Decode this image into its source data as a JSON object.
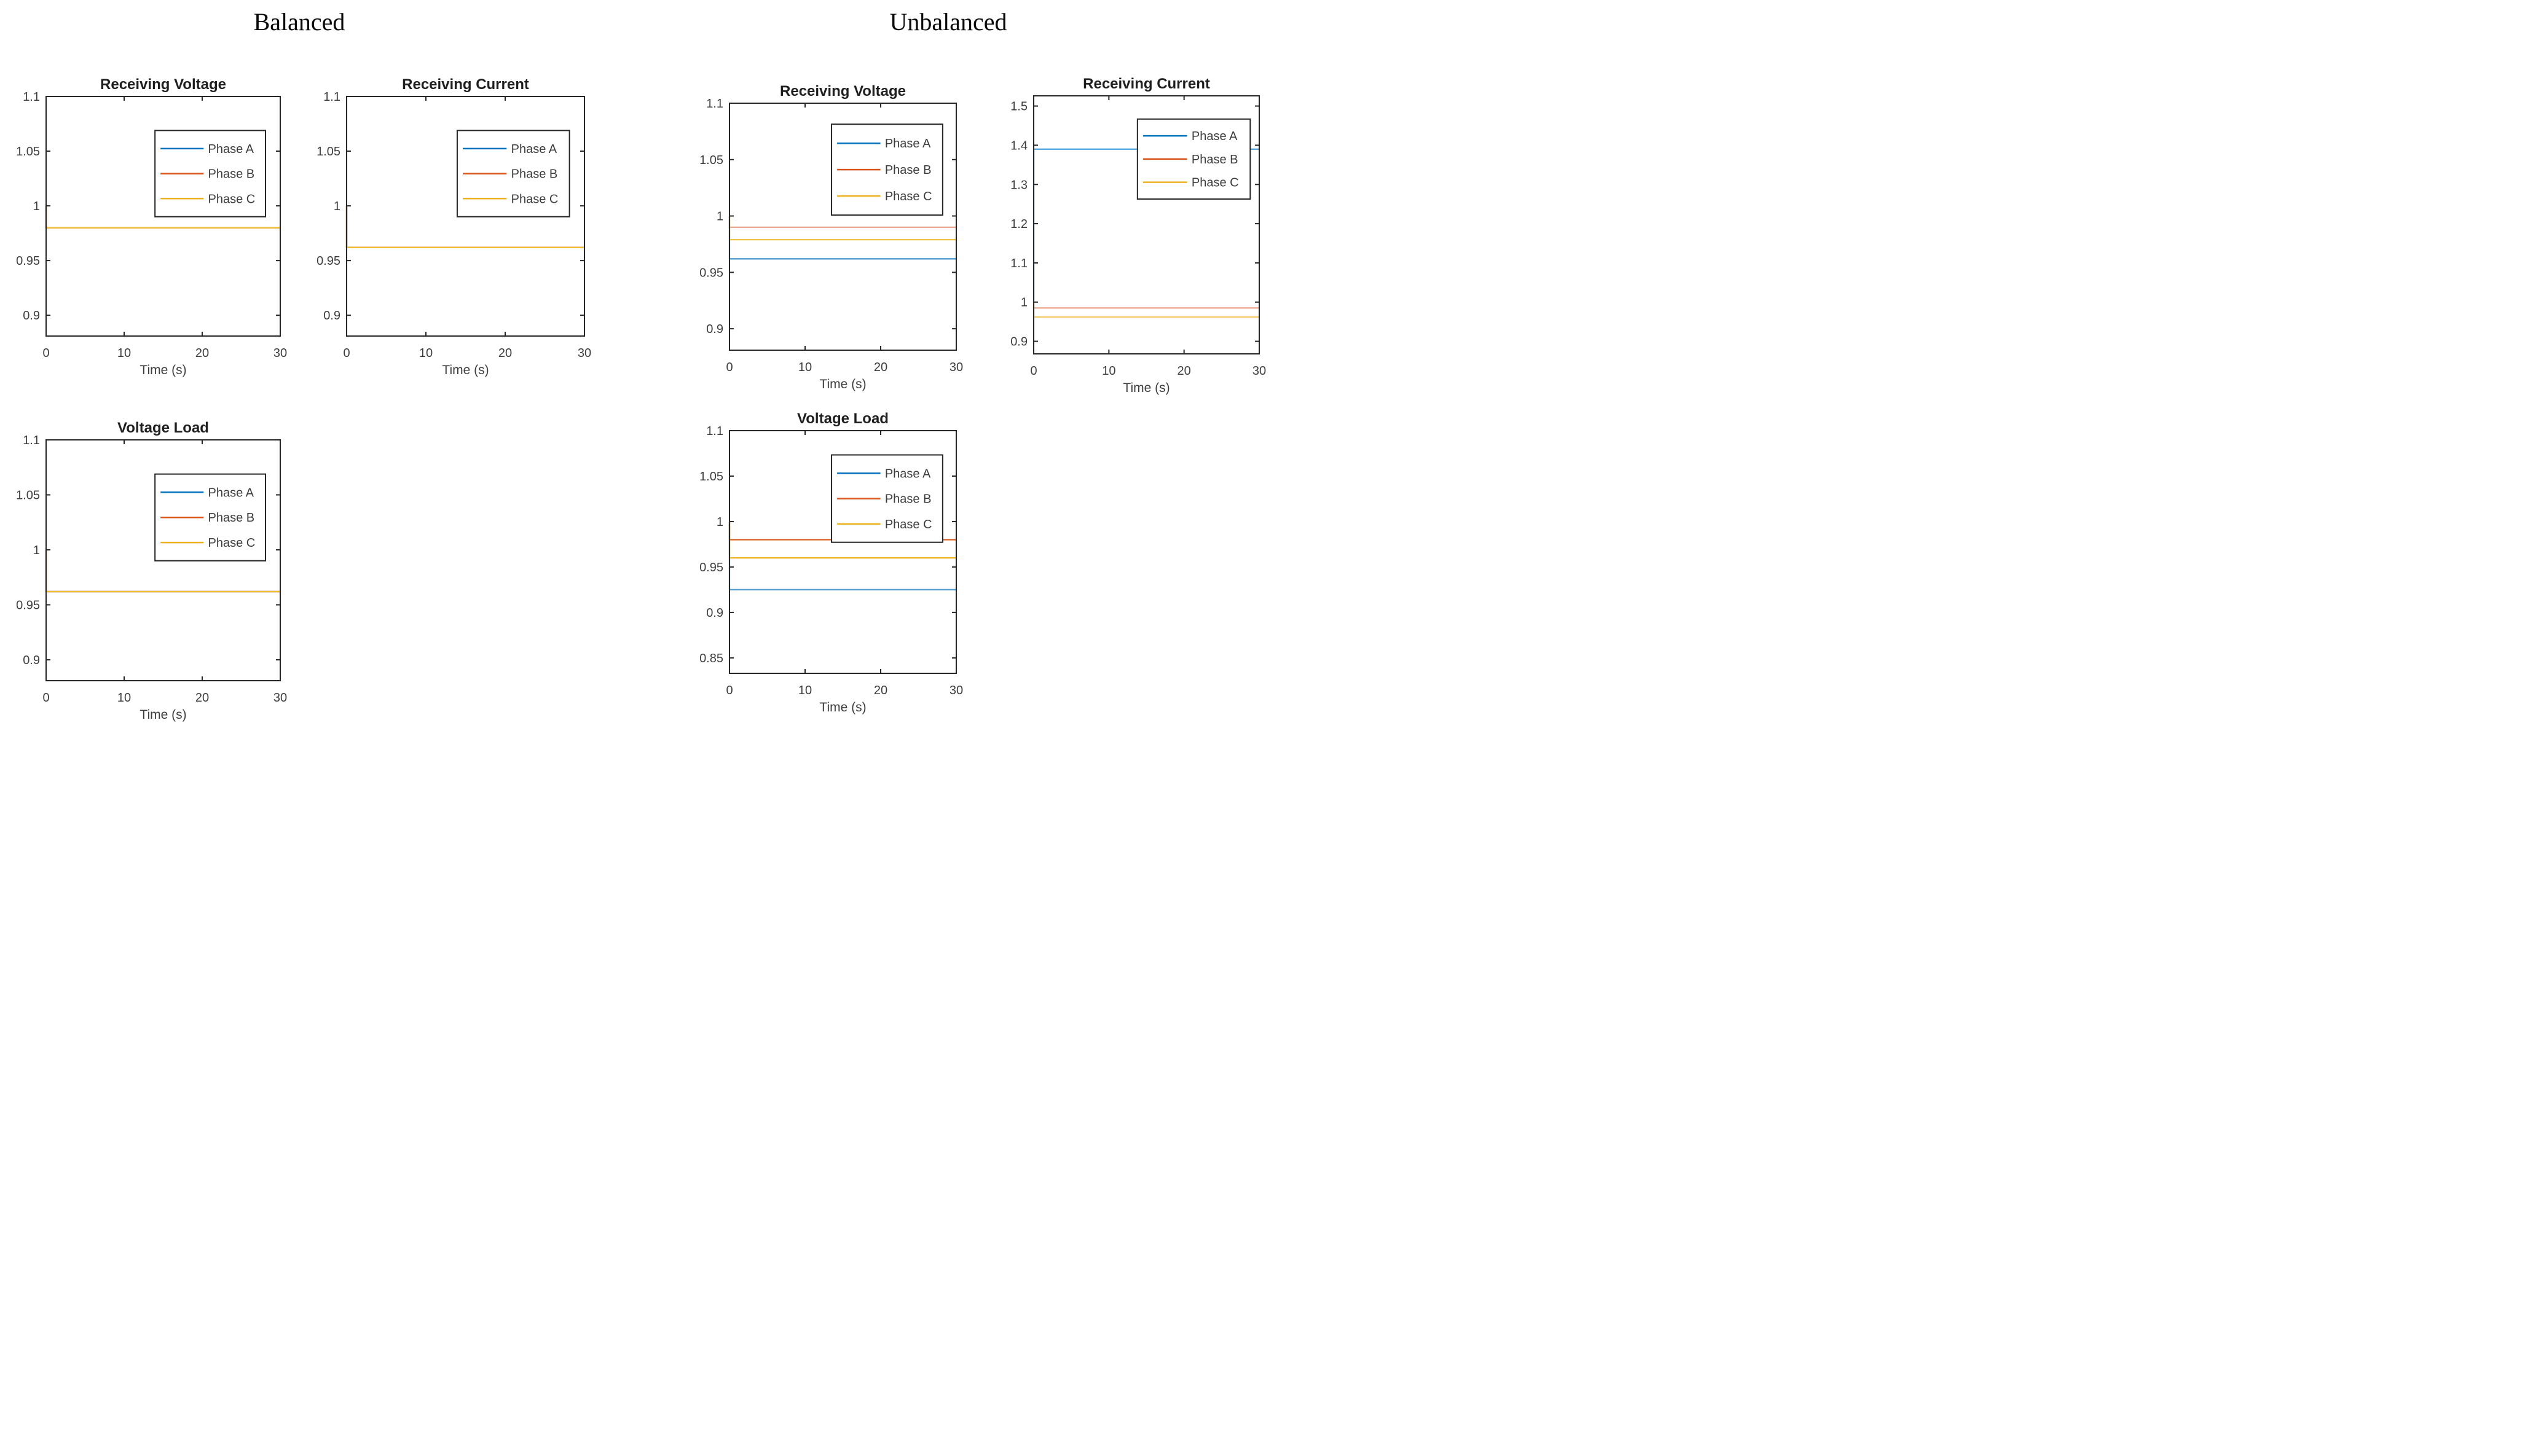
{
  "figure": {
    "background": "#ffffff",
    "axis_color": "#262626",
    "label_color": "#3d3d3d",
    "title_color": "#1f1f1f"
  },
  "groups": [
    {
      "title": "Balanced"
    },
    {
      "title": "Unbalanced"
    }
  ],
  "legend_labels": [
    "Phase A",
    "Phase B",
    "Phase C"
  ],
  "legend_colors": [
    "#0072BD",
    "#D95319",
    "#EDB120"
  ],
  "chart_data": [
    {
      "id": "balanced-receiving-voltage",
      "group": "Balanced",
      "type": "line",
      "title": "Receiving Voltage",
      "xlabel": "Time (s)",
      "xlim": [
        0,
        30
      ],
      "xticks": [
        "0",
        "10",
        "20",
        "30"
      ],
      "ylim": [
        0.881,
        1.1
      ],
      "yticks": [
        "1.1",
        "1.05",
        "1",
        "0.95",
        "0.9"
      ],
      "grid": false,
      "legend": {
        "position": "upper-right",
        "box": {
          "x": 0.465,
          "y": 0.142,
          "w": 0.472,
          "h": 0.36
        },
        "entries": [
          {
            "label": "Phase A",
            "color": "#0072BD"
          },
          {
            "label": "Phase B",
            "color": "#D95319"
          },
          {
            "label": "Phase C",
            "color": "#EDB120"
          }
        ]
      },
      "series": [
        {
          "name": "Phase A",
          "color": "#0072BD",
          "x": [
            0,
            0,
            30
          ],
          "y": [
            1.0,
            0.98,
            0.98
          ]
        },
        {
          "name": "Phase B",
          "color": "#D95319",
          "x": [
            0,
            0,
            30
          ],
          "y": [
            1.0,
            0.98,
            0.98
          ]
        },
        {
          "name": "Phase C",
          "color": "#F2BC33",
          "x": [
            0,
            0,
            30
          ],
          "y": [
            1.0,
            0.98,
            0.98
          ]
        }
      ]
    },
    {
      "id": "balanced-receiving-current",
      "group": "Balanced",
      "type": "line",
      "title": "Receiving Current",
      "xlabel": "Time (s)",
      "xlim": [
        0,
        30
      ],
      "xticks": [
        "0",
        "10",
        "20",
        "30"
      ],
      "ylim": [
        0.881,
        1.1
      ],
      "yticks": [
        "1.1",
        "1.05",
        "1",
        "0.95",
        "0.9"
      ],
      "grid": false,
      "legend": {
        "position": "upper-right",
        "box": {
          "x": 0.465,
          "y": 0.142,
          "w": 0.472,
          "h": 0.36
        },
        "entries": [
          {
            "label": "Phase A",
            "color": "#0072BD"
          },
          {
            "label": "Phase B",
            "color": "#D95319"
          },
          {
            "label": "Phase C",
            "color": "#EDB120"
          }
        ]
      },
      "series": [
        {
          "name": "Phase A",
          "color": "#0072BD",
          "x": [
            0,
            0,
            30
          ],
          "y": [
            1.0,
            0.962,
            0.962
          ]
        },
        {
          "name": "Phase B",
          "color": "#D95319",
          "x": [
            0,
            0,
            30
          ],
          "y": [
            1.0,
            0.962,
            0.962
          ]
        },
        {
          "name": "Phase C",
          "color": "#F2BC33",
          "x": [
            0,
            0,
            30
          ],
          "y": [
            1.0,
            0.962,
            0.962
          ]
        }
      ]
    },
    {
      "id": "balanced-voltage-load",
      "group": "Balanced",
      "type": "line",
      "title": "Voltage Load",
      "xlabel": "Time (s)",
      "xlim": [
        0,
        30
      ],
      "xticks": [
        "0",
        "10",
        "20",
        "30"
      ],
      "ylim": [
        0.881,
        1.1
      ],
      "yticks": [
        "1.1",
        "1.05",
        "1",
        "0.95",
        "0.9"
      ],
      "grid": false,
      "legend": {
        "position": "upper-right",
        "box": {
          "x": 0.465,
          "y": 0.142,
          "w": 0.472,
          "h": 0.36
        },
        "entries": [
          {
            "label": "Phase A",
            "color": "#0072BD"
          },
          {
            "label": "Phase B",
            "color": "#D95319"
          },
          {
            "label": "Phase C",
            "color": "#EDB120"
          }
        ]
      },
      "series": [
        {
          "name": "Phase A",
          "color": "#0072BD",
          "x": [
            0,
            0,
            30
          ],
          "y": [
            1.0,
            0.962,
            0.962
          ]
        },
        {
          "name": "Phase B",
          "color": "#D95319",
          "x": [
            0,
            0,
            30
          ],
          "y": [
            1.0,
            0.962,
            0.962
          ]
        },
        {
          "name": "Phase C",
          "color": "#F2BC33",
          "x": [
            0,
            0,
            30
          ],
          "y": [
            1.0,
            0.962,
            0.962
          ]
        }
      ]
    },
    {
      "id": "unbalanced-receiving-voltage",
      "group": "Unbalanced",
      "type": "line",
      "title": "Receiving Voltage",
      "xlabel": "Time (s)",
      "xlim": [
        0,
        30
      ],
      "xticks": [
        "0",
        "10",
        "20",
        "30"
      ],
      "ylim": [
        0.881,
        1.1
      ],
      "yticks": [
        "1.1",
        "1.05",
        "1",
        "0.95",
        "0.9"
      ],
      "grid": false,
      "legend": {
        "position": "upper-right",
        "box": {
          "x": 0.45,
          "y": 0.085,
          "w": 0.49,
          "h": 0.368
        },
        "entries": [
          {
            "label": "Phase A",
            "color": "#0072BD"
          },
          {
            "label": "Phase B",
            "color": "#D95319"
          },
          {
            "label": "Phase C",
            "color": "#EDB120"
          }
        ]
      },
      "series": [
        {
          "name": "Phase A",
          "color": "#4E9ACF",
          "x": [
            0,
            0,
            30
          ],
          "y": [
            1.0,
            0.962,
            0.962
          ]
        },
        {
          "name": "Phase B",
          "color": "#EBA78C",
          "x": [
            0,
            0,
            30
          ],
          "y": [
            1.0,
            0.99,
            0.99
          ]
        },
        {
          "name": "Phase C",
          "color": "#EFC143",
          "x": [
            0,
            0,
            30
          ],
          "y": [
            1.0,
            0.979,
            0.979
          ]
        }
      ]
    },
    {
      "id": "unbalanced-receiving-current",
      "group": "Unbalanced",
      "type": "line",
      "title": "Receiving Current",
      "xlabel": "Time (s)",
      "xlim": [
        0,
        30
      ],
      "xticks": [
        "0",
        "10",
        "20",
        "30"
      ],
      "ylim": [
        0.868,
        1.526
      ],
      "yticks": [
        "1.5",
        "1.4",
        "1.3",
        "1.2",
        "1.1",
        "1",
        "0.9"
      ],
      "grid": false,
      "legend": {
        "position": "upper-right",
        "box": {
          "x": 0.46,
          "y": 0.09,
          "w": 0.5,
          "h": 0.31
        },
        "entries": [
          {
            "label": "Phase A",
            "color": "#0072BD"
          },
          {
            "label": "Phase B",
            "color": "#D95319"
          },
          {
            "label": "Phase C",
            "color": "#EDB120"
          }
        ]
      },
      "series": [
        {
          "name": "Phase A",
          "color": "#56A7DD",
          "x": [
            0,
            0,
            30
          ],
          "y": [
            1.0,
            1.39,
            1.39
          ]
        },
        {
          "name": "Phase B",
          "color": "#EFA98C",
          "x": [
            0,
            0,
            30
          ],
          "y": [
            1.0,
            0.985,
            0.985
          ]
        },
        {
          "name": "Phase C",
          "color": "#F2CB68",
          "x": [
            0,
            0,
            30
          ],
          "y": [
            1.0,
            0.962,
            0.962
          ]
        }
      ]
    },
    {
      "id": "unbalanced-voltage-load",
      "group": "Unbalanced",
      "type": "line",
      "title": "Voltage Load",
      "xlabel": "Time (s)",
      "xlim": [
        0,
        30
      ],
      "xticks": [
        "0",
        "10",
        "20",
        "30"
      ],
      "ylim": [
        0.833,
        1.1
      ],
      "yticks": [
        "1.1",
        "1.05",
        "1",
        "0.95",
        "0.9",
        "0.85"
      ],
      "grid": false,
      "legend": {
        "position": "upper-right",
        "box": {
          "x": 0.45,
          "y": 0.1,
          "w": 0.49,
          "h": 0.36
        },
        "entries": [
          {
            "label": "Phase A",
            "color": "#0072BD"
          },
          {
            "label": "Phase B",
            "color": "#D95319"
          },
          {
            "label": "Phase C",
            "color": "#EDB120"
          }
        ]
      },
      "series": [
        {
          "name": "Phase A",
          "color": "#4F9BCD",
          "x": [
            0,
            0,
            30
          ],
          "y": [
            1.0,
            0.925,
            0.925
          ]
        },
        {
          "name": "Phase B",
          "color": "#D95F1E",
          "x": [
            0,
            0,
            30
          ],
          "y": [
            1.0,
            0.98,
            0.98
          ]
        },
        {
          "name": "Phase C",
          "color": "#EFB224",
          "x": [
            0,
            0,
            30
          ],
          "y": [
            1.0,
            0.96,
            0.96
          ]
        }
      ]
    }
  ]
}
